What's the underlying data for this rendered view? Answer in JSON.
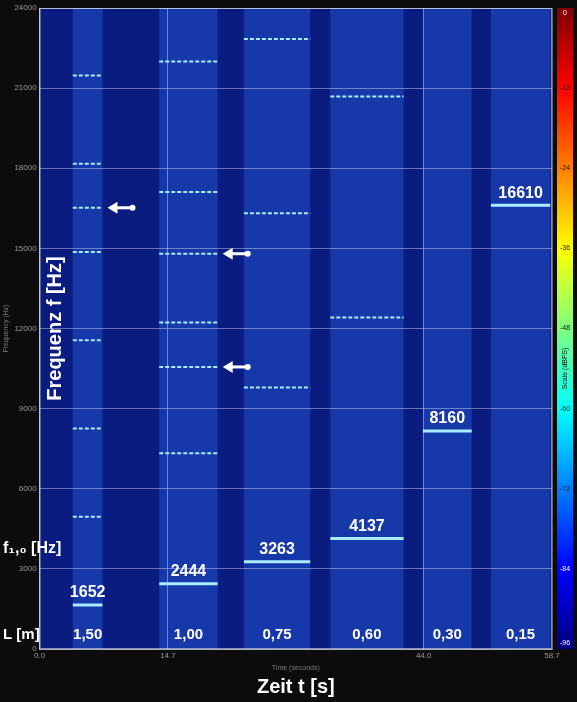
{
  "chart_data": {
    "type": "spectrogram",
    "xlabel": "Zeit t [s]",
    "ylabel": "Frequenz f [Hz]",
    "xlabel_small": "Time (seconds)",
    "ylabel_small": "Frequency (Hz)",
    "xlim": [
      0,
      58.7
    ],
    "xticks": [
      {
        "value": 0,
        "label": "0.0"
      },
      14.7,
      {
        "value": 44,
        "label": "44.0"
      },
      58.7
    ],
    "ylim": [
      0,
      24000
    ],
    "yticks": [
      0,
      3000,
      6000,
      9000,
      12000,
      15000,
      18000,
      21000,
      24000
    ],
    "grid": true,
    "color": "#a8ecff",
    "f0_label": "f₁,₀ [Hz]",
    "L_label": "L [m]",
    "segments": [
      {
        "start": 3.8,
        "end": 7.2,
        "L": "1,50",
        "f0": 1652,
        "lines": [
          1652,
          4956,
          8260,
          11564,
          14868,
          16520,
          18172,
          21476
        ]
      },
      {
        "start": 13.7,
        "end": 20.4,
        "L": "1,00",
        "f0": 2444,
        "lines": [
          2444,
          7332,
          10560,
          12220,
          14800,
          17108,
          21996
        ]
      },
      {
        "start": 23.4,
        "end": 31.0,
        "L": "0,75",
        "f0": 3263,
        "lines": [
          3263,
          9789,
          16315,
          22841
        ]
      },
      {
        "start": 33.3,
        "end": 41.7,
        "L": "0,60",
        "f0": 4137,
        "lines": [
          4137,
          12411,
          20685
        ]
      },
      {
        "start": 43.9,
        "end": 49.5,
        "L": "0,30",
        "f0": 8160,
        "lines": [
          8160
        ]
      },
      {
        "start": 51.7,
        "end": 58.5,
        "L": "0,15",
        "f0": 16610,
        "lines": [
          16610
        ]
      }
    ],
    "colorbar": {
      "label": "Scale (dBFS)",
      "range": [
        -96,
        0
      ],
      "ticks": [
        0,
        -12,
        -24,
        -36,
        -48,
        -60,
        -72,
        -84,
        -96
      ]
    }
  }
}
